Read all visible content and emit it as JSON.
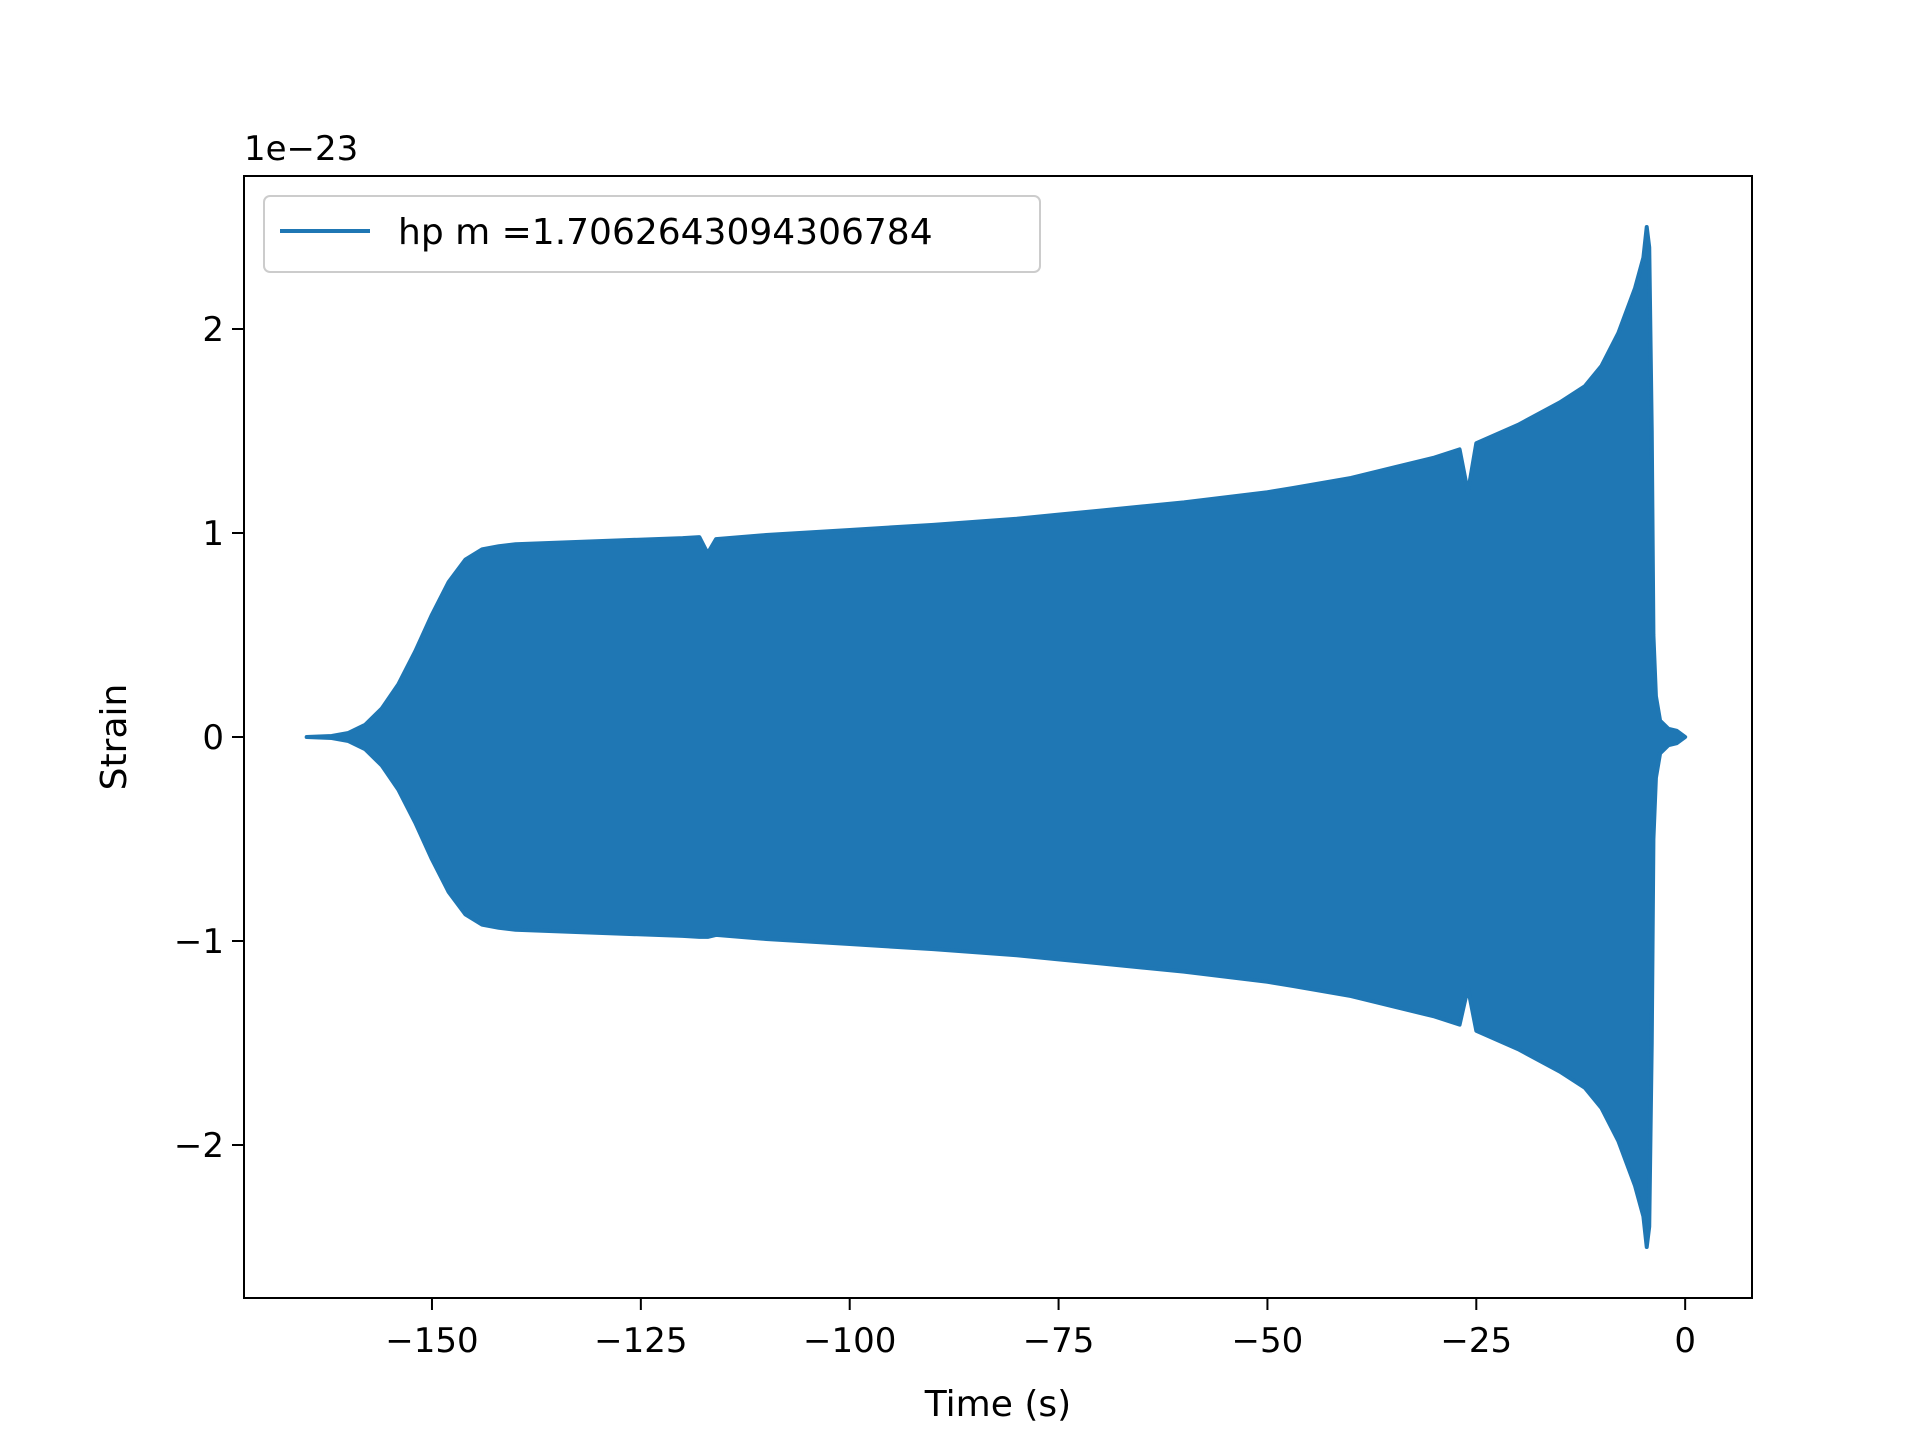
{
  "chart_data": {
    "type": "area",
    "title": "",
    "xlabel": "Time (s)",
    "ylabel": "Strain",
    "y_offset_text": "1e−23",
    "y_scale": 1e-23,
    "xlim": [
      -172.5,
      8.0
    ],
    "ylim": [
      -2.75,
      2.75
    ],
    "xticks": [
      -150,
      -125,
      -100,
      -75,
      -50,
      -25,
      0
    ],
    "xtick_labels": [
      "−150",
      "−125",
      "−100",
      "−75",
      "−50",
      "−25",
      "0"
    ],
    "yticks": [
      -2,
      -1,
      0,
      1,
      2
    ],
    "ytick_labels": [
      "−2",
      "−1",
      "0",
      "1",
      "2"
    ],
    "grid": false,
    "legend_position": "upper-left",
    "series": [
      {
        "name": "hp m =1.7062643094306784",
        "color": "#1f77b4",
        "envelope_x": [
          -165,
          -162,
          -160,
          -158,
          -156,
          -154,
          -152,
          -150,
          -148,
          -146,
          -144,
          -142,
          -141,
          -140,
          -130,
          -120,
          -118,
          -117,
          -116,
          -110,
          -100,
          -90,
          -80,
          -75,
          -70,
          -60,
          -50,
          -47,
          -40,
          -30,
          -27,
          -26,
          -25,
          -20,
          -15,
          -12,
          -10,
          -8,
          -6,
          -5,
          -4.6,
          -4.3,
          -4.0,
          -3.8,
          -3.5,
          -3.0,
          -2.0,
          -1.0,
          0.0
        ],
        "envelope_upper": [
          0.0,
          0.005,
          0.02,
          0.06,
          0.14,
          0.26,
          0.42,
          0.6,
          0.76,
          0.87,
          0.92,
          0.935,
          0.94,
          0.945,
          0.96,
          0.975,
          0.98,
          0.9,
          0.97,
          0.99,
          1.015,
          1.04,
          1.07,
          1.09,
          1.11,
          1.15,
          1.2,
          1.22,
          1.27,
          1.37,
          1.41,
          1.2,
          1.44,
          1.53,
          1.64,
          1.72,
          1.82,
          1.98,
          2.2,
          2.35,
          2.5,
          2.4,
          1.5,
          0.5,
          0.2,
          0.08,
          0.04,
          0.03,
          0.0
        ],
        "envelope_lower": [
          0.0,
          -0.005,
          -0.02,
          -0.06,
          -0.14,
          -0.26,
          -0.42,
          -0.6,
          -0.76,
          -0.87,
          -0.92,
          -0.935,
          -0.94,
          -0.945,
          -0.96,
          -0.975,
          -0.98,
          -0.98,
          -0.97,
          -0.99,
          -1.015,
          -1.04,
          -1.07,
          -1.09,
          -1.11,
          -1.15,
          -1.2,
          -1.22,
          -1.27,
          -1.37,
          -1.41,
          -1.23,
          -1.44,
          -1.53,
          -1.64,
          -1.72,
          -1.82,
          -1.98,
          -2.2,
          -2.35,
          -2.5,
          -2.4,
          -1.5,
          -0.5,
          -0.2,
          -0.08,
          -0.04,
          -0.03,
          0.0
        ]
      }
    ]
  }
}
